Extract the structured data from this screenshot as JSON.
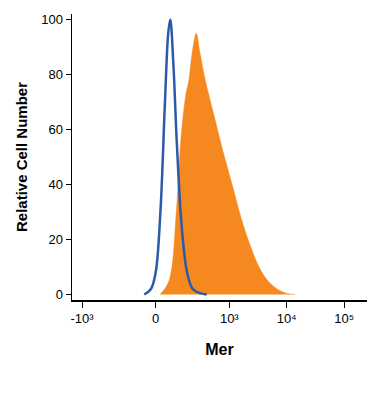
{
  "chart_data": {
    "type": "histogram_overlay",
    "x_label": "Mer",
    "y_label": "Relative Cell Number",
    "xlim": [
      -1500,
      250000
    ],
    "xticks": [
      {
        "value": -1000,
        "label": "-10³"
      },
      0,
      {
        "value": 1000,
        "label": "10³"
      },
      {
        "value": 10000,
        "label": "10⁴"
      },
      {
        "value": 100000,
        "label": "10⁵"
      }
    ],
    "ylim": [
      -2,
      102
    ],
    "yticks": [
      0,
      20,
      40,
      60,
      80,
      100
    ],
    "grid": false,
    "series": [
      {
        "type": "area",
        "color": "#f5881f",
        "x": [
          19,
          59,
          97,
          123,
          158,
          185,
          215,
          257,
          300,
          375,
          540,
          775,
          1120,
          1600,
          2300,
          3300,
          4700,
          6800,
          9700,
          13900
        ],
        "values": [
          0,
          5,
          30,
          55,
          72,
          78,
          88,
          95,
          88,
          78,
          65,
          52,
          40,
          28,
          18,
          10,
          5,
          2,
          0.5,
          0
        ]
      },
      {
        "type": "line",
        "color": "#2b5aa8",
        "x": [
          -50,
          -20,
          0,
          20,
          40,
          55,
          65,
          80,
          100,
          130,
          170,
          220,
          300,
          400
        ],
        "values": [
          0,
          2,
          8,
          30,
          70,
          95,
          100,
          85,
          55,
          25,
          8,
          2,
          0.5,
          0
        ]
      }
    ]
  }
}
